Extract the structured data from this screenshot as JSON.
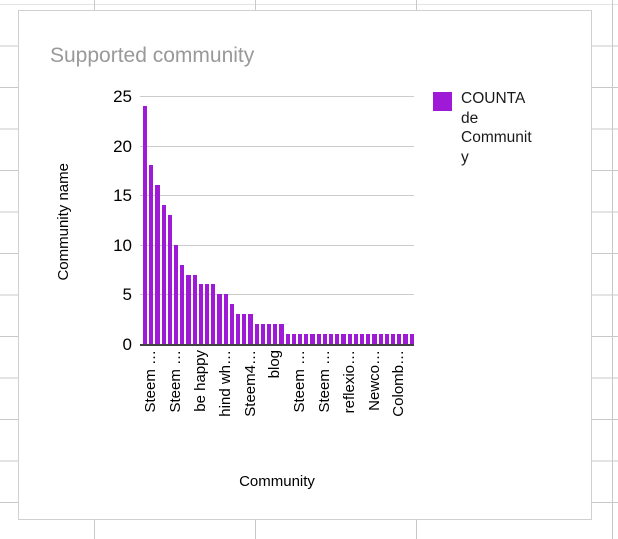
{
  "chart": {
    "title": "Supported community",
    "title_color": "#999999",
    "legend": {
      "label": "COUNTA de Community",
      "display_text": "COUNTA\nde\nCommunit\ny",
      "swatch_color": "#9f1ad6"
    },
    "y_axis": {
      "title": "Community name"
    },
    "x_axis": {
      "title": "Community"
    }
  },
  "chart_data": {
    "type": "bar",
    "title": "Supported community",
    "xlabel": "Community",
    "ylabel": "Community name",
    "series_name": "COUNTA de Community",
    "bar_color": "#9f1ad6",
    "ylim": [
      0,
      25
    ],
    "y_ticks": [
      0,
      5,
      10,
      15,
      20,
      25
    ],
    "grid": true,
    "legend_position": "right",
    "values": [
      24,
      18,
      16,
      14,
      13,
      10,
      8,
      7,
      7,
      6,
      6,
      6,
      5,
      5,
      4,
      3,
      3,
      3,
      2,
      2,
      2,
      2,
      2,
      1,
      1,
      1,
      1,
      1,
      1,
      1,
      1,
      1,
      1,
      1,
      1,
      1,
      1,
      1,
      1,
      1,
      1,
      1,
      1,
      1
    ],
    "visible_x_tick_labels": [
      "Steem …",
      "Steem …",
      "be happy",
      "hind wh…",
      "Steem4…",
      "blog",
      "Steem …",
      "Steem …",
      "reflexio…",
      "Newco…",
      "Colomb…"
    ],
    "x_label_every_n_bars": 4,
    "x_label_start_bar_index": 1
  }
}
